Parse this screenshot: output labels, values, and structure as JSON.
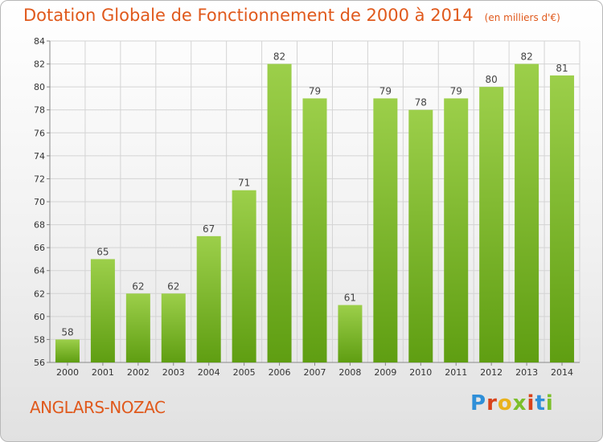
{
  "header": {
    "title": "Dotation Globale de Fonctionnement de 2000 à 2014",
    "unit": "(en milliers d'€)"
  },
  "footer": {
    "commune": "ANGLARS-NOZAC",
    "logo": "Proxiti"
  },
  "colors": {
    "bar_top": "#9ccf4a",
    "bar_bottom": "#5f9e12",
    "title": "#e0591c"
  },
  "chart_data": {
    "type": "bar",
    "title": "Dotation Globale de Fonctionnement de 2000 à 2014",
    "subtitle": "(en milliers d'€)",
    "xlabel": "",
    "ylabel": "",
    "categories": [
      "2000",
      "2001",
      "2002",
      "2003",
      "2004",
      "2005",
      "2006",
      "2007",
      "2008",
      "2009",
      "2010",
      "2011",
      "2012",
      "2013",
      "2014"
    ],
    "values": [
      58,
      65,
      62,
      62,
      67,
      71,
      82,
      79,
      61,
      79,
      78,
      79,
      80,
      82,
      81
    ],
    "ylim": [
      56,
      84
    ],
    "yticks": [
      56,
      58,
      60,
      62,
      64,
      66,
      68,
      70,
      72,
      74,
      76,
      78,
      80,
      82,
      84
    ],
    "grid": true,
    "legend": "none"
  }
}
